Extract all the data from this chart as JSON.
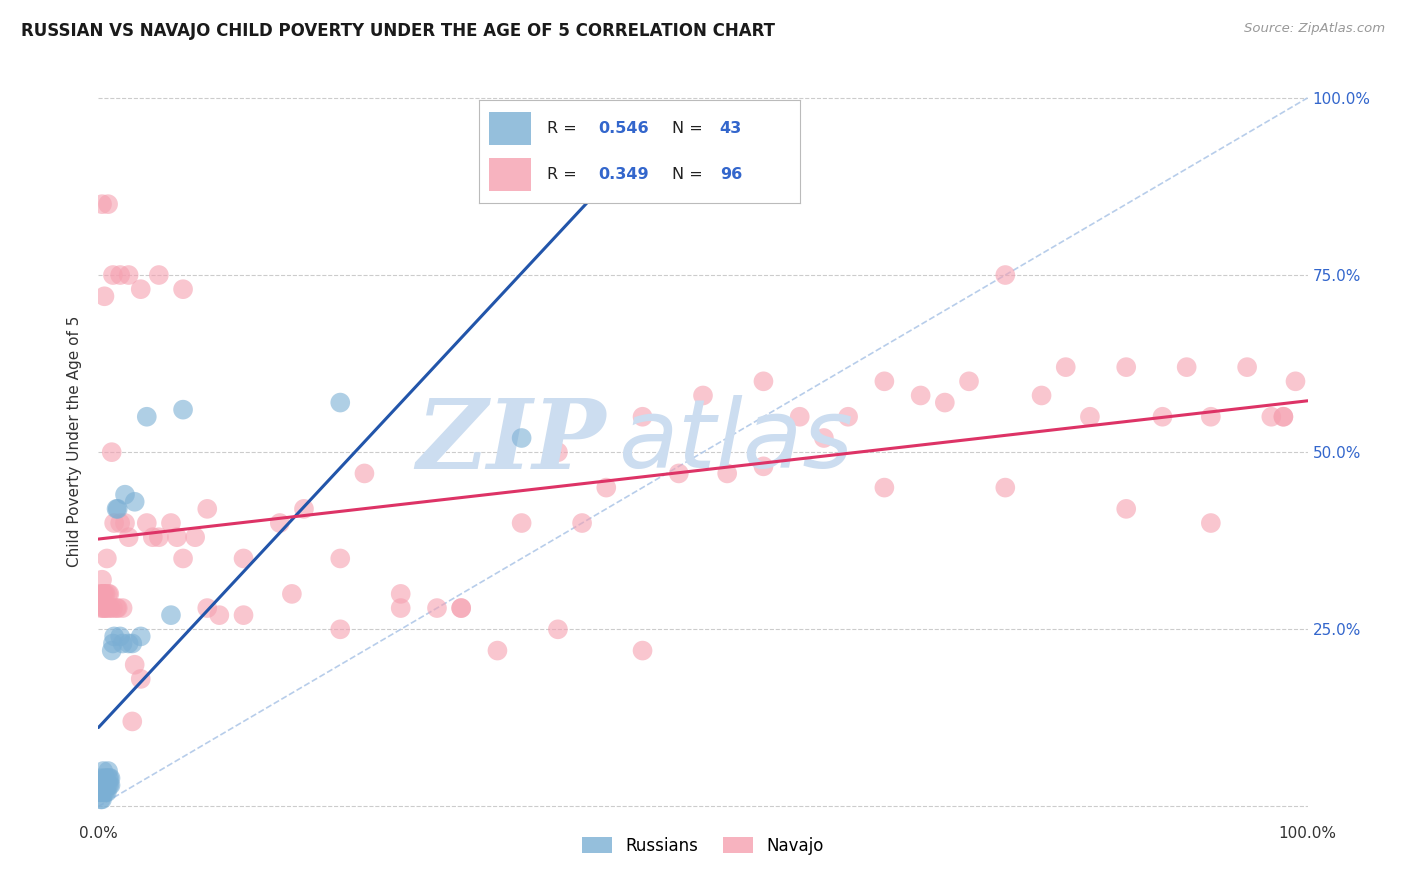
{
  "title": "RUSSIAN VS NAVAJO CHILD POVERTY UNDER THE AGE OF 5 CORRELATION CHART",
  "source": "Source: ZipAtlas.com",
  "ylabel": "Child Poverty Under the Age of 5",
  "xlim": [
    0.0,
    1.0
  ],
  "ylim": [
    -0.02,
    1.05
  ],
  "yticks": [
    0.0,
    0.25,
    0.5,
    0.75,
    1.0
  ],
  "ytick_labels_right": [
    "",
    "25.0%",
    "50.0%",
    "75.0%",
    "100.0%"
  ],
  "grid_color": "#cccccc",
  "background": "#ffffff",
  "russian_color": "#7bafd4",
  "navajo_color": "#f5a0b0",
  "russian_R": 0.546,
  "russian_N": 43,
  "navajo_R": 0.349,
  "navajo_N": 96,
  "diagonal_color": "#b0c8e8",
  "russian_line_color": "#2255aa",
  "navajo_line_color": "#dd3366",
  "legend_color": "#3366cc",
  "russian_x": [
    0.001,
    0.001,
    0.002,
    0.002,
    0.002,
    0.003,
    0.003,
    0.003,
    0.004,
    0.004,
    0.004,
    0.005,
    0.005,
    0.005,
    0.006,
    0.006,
    0.006,
    0.007,
    0.007,
    0.008,
    0.008,
    0.008,
    0.009,
    0.009,
    0.01,
    0.01,
    0.011,
    0.012,
    0.013,
    0.015,
    0.016,
    0.018,
    0.02,
    0.022,
    0.025,
    0.028,
    0.03,
    0.035,
    0.04,
    0.06,
    0.07,
    0.2,
    0.35
  ],
  "russian_y": [
    0.02,
    0.03,
    0.01,
    0.02,
    0.04,
    0.01,
    0.02,
    0.03,
    0.02,
    0.03,
    0.05,
    0.02,
    0.03,
    0.04,
    0.02,
    0.03,
    0.04,
    0.02,
    0.03,
    0.03,
    0.04,
    0.05,
    0.03,
    0.04,
    0.03,
    0.04,
    0.22,
    0.23,
    0.24,
    0.42,
    0.42,
    0.24,
    0.23,
    0.44,
    0.23,
    0.23,
    0.43,
    0.24,
    0.55,
    0.27,
    0.56,
    0.57,
    0.52
  ],
  "navajo_x": [
    0.001,
    0.002,
    0.003,
    0.003,
    0.004,
    0.004,
    0.005,
    0.005,
    0.006,
    0.006,
    0.007,
    0.008,
    0.008,
    0.009,
    0.01,
    0.011,
    0.012,
    0.013,
    0.015,
    0.016,
    0.018,
    0.02,
    0.022,
    0.025,
    0.028,
    0.03,
    0.035,
    0.04,
    0.045,
    0.05,
    0.06,
    0.065,
    0.07,
    0.08,
    0.09,
    0.1,
    0.12,
    0.15,
    0.17,
    0.2,
    0.22,
    0.25,
    0.28,
    0.3,
    0.33,
    0.35,
    0.38,
    0.4,
    0.42,
    0.45,
    0.48,
    0.5,
    0.52,
    0.55,
    0.58,
    0.6,
    0.62,
    0.65,
    0.68,
    0.7,
    0.72,
    0.75,
    0.78,
    0.8,
    0.82,
    0.85,
    0.88,
    0.9,
    0.92,
    0.95,
    0.97,
    0.98,
    0.99,
    0.003,
    0.005,
    0.008,
    0.012,
    0.018,
    0.025,
    0.035,
    0.05,
    0.07,
    0.09,
    0.12,
    0.16,
    0.2,
    0.25,
    0.3,
    0.38,
    0.45,
    0.55,
    0.65,
    0.75,
    0.85,
    0.92,
    0.98
  ],
  "navajo_y": [
    0.3,
    0.28,
    0.32,
    0.3,
    0.28,
    0.3,
    0.28,
    0.3,
    0.3,
    0.28,
    0.35,
    0.28,
    0.3,
    0.3,
    0.28,
    0.5,
    0.28,
    0.4,
    0.28,
    0.28,
    0.4,
    0.28,
    0.4,
    0.38,
    0.12,
    0.2,
    0.18,
    0.4,
    0.38,
    0.38,
    0.4,
    0.38,
    0.35,
    0.38,
    0.28,
    0.27,
    0.27,
    0.4,
    0.42,
    0.25,
    0.47,
    0.28,
    0.28,
    0.28,
    0.22,
    0.4,
    0.5,
    0.4,
    0.45,
    0.55,
    0.47,
    0.58,
    0.47,
    0.6,
    0.55,
    0.52,
    0.55,
    0.6,
    0.58,
    0.57,
    0.6,
    0.75,
    0.58,
    0.62,
    0.55,
    0.62,
    0.55,
    0.62,
    0.55,
    0.62,
    0.55,
    0.55,
    0.6,
    0.85,
    0.72,
    0.85,
    0.75,
    0.75,
    0.75,
    0.73,
    0.75,
    0.73,
    0.42,
    0.35,
    0.3,
    0.35,
    0.3,
    0.28,
    0.25,
    0.22,
    0.48,
    0.45,
    0.45,
    0.42,
    0.4,
    0.55
  ]
}
